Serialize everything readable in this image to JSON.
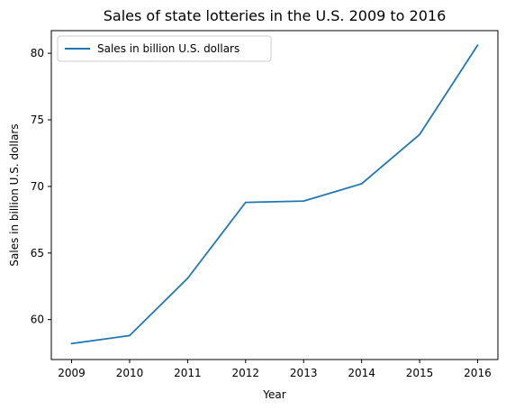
{
  "chart_data": {
    "type": "line",
    "title": "Sales of state lotteries in the U.S. 2009 to 2016",
    "xlabel": "Year",
    "ylabel": "Sales in billion U.S. dollars",
    "x": [
      2009,
      2010,
      2011,
      2012,
      2013,
      2014,
      2015,
      2016
    ],
    "series": [
      {
        "name": "Sales in billion U.S. dollars",
        "values": [
          58.2,
          58.8,
          63.1,
          68.8,
          68.9,
          70.2,
          73.9,
          80.6
        ],
        "color": "#1f77b4"
      }
    ],
    "xticks": [
      "2009",
      "2010",
      "2011",
      "2012",
      "2013",
      "2014",
      "2015",
      "2016"
    ],
    "yticks": [
      60,
      65,
      70,
      75,
      80
    ],
    "xlim": [
      2008.65,
      2016.35
    ],
    "ylim": [
      57.0,
      81.7
    ],
    "grid": false,
    "legend_position": "top-left"
  }
}
